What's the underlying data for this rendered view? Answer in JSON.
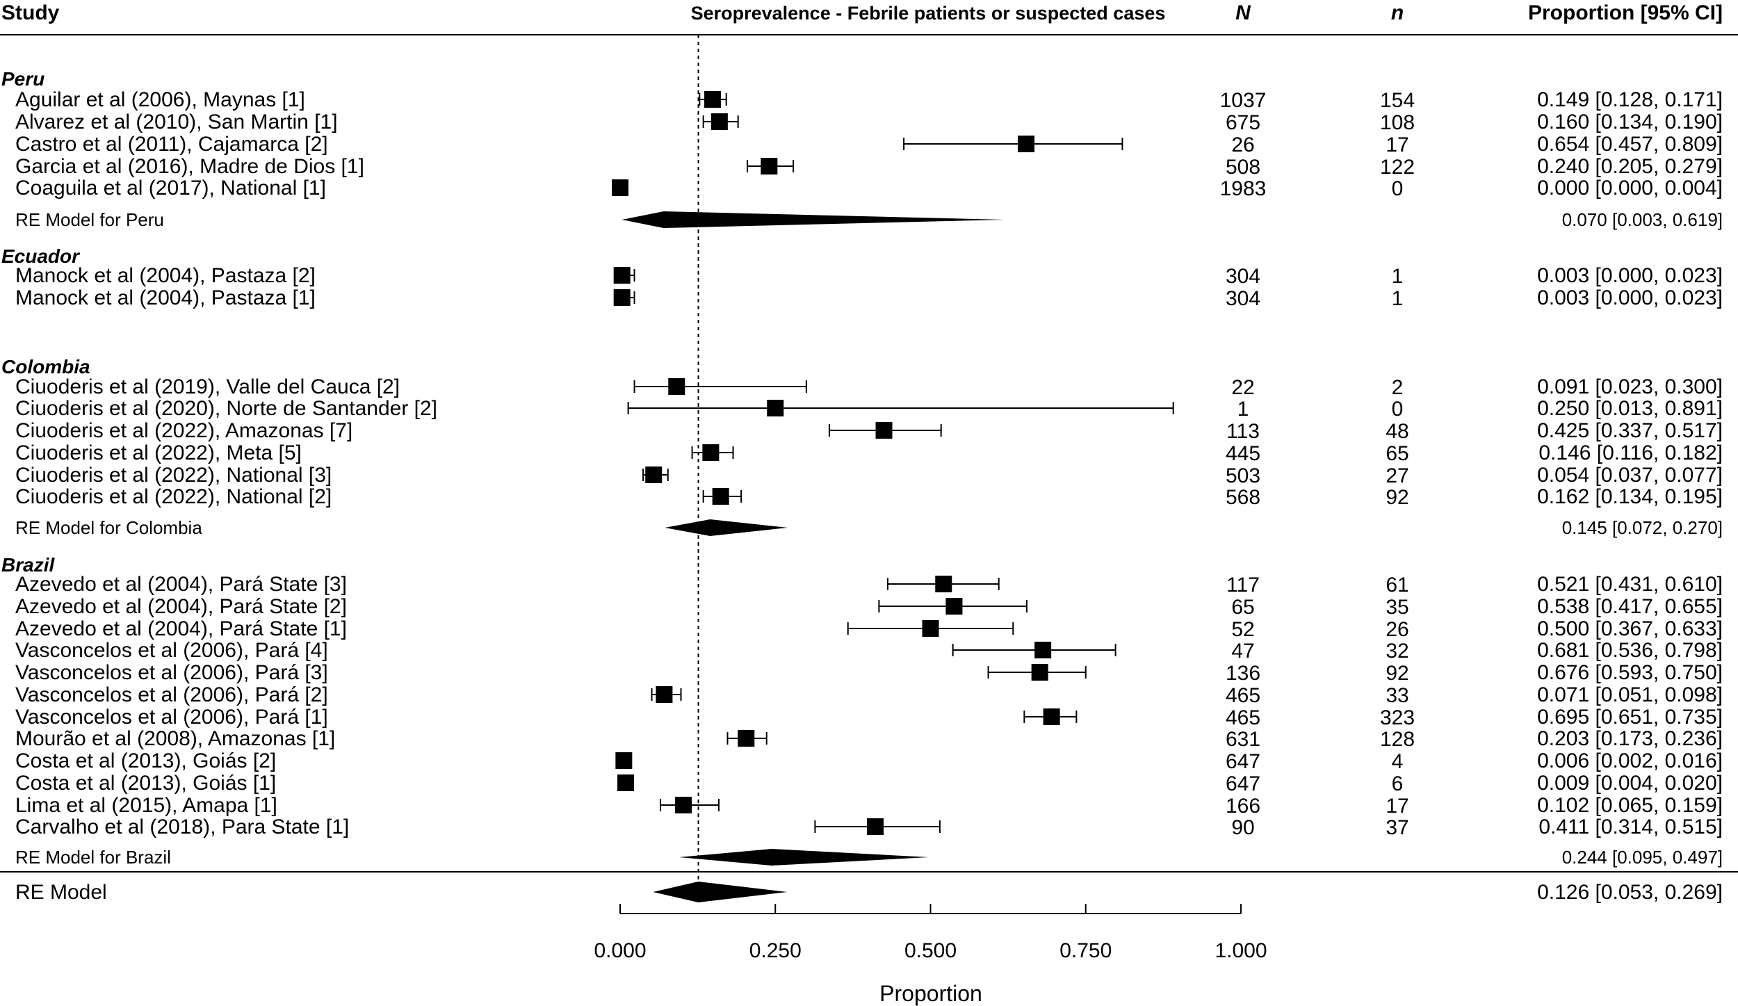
{
  "header": {
    "study": "Study",
    "title": "Seroprevalence - Febrile patients or suspected cases",
    "N": "N",
    "n": "n",
    "proportion": "Proportion [95% CI]"
  },
  "axis": {
    "label": "Proportion",
    "ticks": [
      "0.000",
      "0.250",
      "0.500",
      "0.750",
      "1.000"
    ]
  },
  "chart_data": {
    "type": "forest",
    "xlabel": "Proportion",
    "xlim": [
      0,
      1
    ],
    "x_ticks": [
      0,
      0.25,
      0.5,
      0.75,
      1.0
    ],
    "reference_line": 0.126,
    "groups": [
      {
        "name": "Peru",
        "studies": [
          {
            "label": "Aguilar et al (2006), Maynas [1]",
            "N": "1037",
            "n": "154",
            "est": 0.149,
            "lo": 0.128,
            "hi": 0.171,
            "ci_text": "0.149 [0.128, 0.171]"
          },
          {
            "label": "Alvarez et al (2010), San Martin [1]",
            "N": "675",
            "n": "108",
            "est": 0.16,
            "lo": 0.134,
            "hi": 0.19,
            "ci_text": "0.160 [0.134, 0.190]"
          },
          {
            "label": "Castro et al (2011), Cajamarca [2]",
            "N": "26",
            "n": "17",
            "est": 0.654,
            "lo": 0.457,
            "hi": 0.809,
            "ci_text": "0.654 [0.457, 0.809]"
          },
          {
            "label": "Garcia et al (2016), Madre de Dios [1]",
            "N": "508",
            "n": "122",
            "est": 0.24,
            "lo": 0.205,
            "hi": 0.279,
            "ci_text": "0.240 [0.205, 0.279]"
          },
          {
            "label": "Coaguila et al (2017), National [1]",
            "N": "1983",
            "n": "0",
            "est": 0.0,
            "lo": 0.0,
            "hi": 0.004,
            "ci_text": "0.000 [0.000, 0.004]"
          }
        ],
        "re_model": {
          "label": "RE Model for Peru",
          "est": 0.07,
          "lo": 0.003,
          "hi": 0.619,
          "ci_text": "0.070 [0.003, 0.619]"
        }
      },
      {
        "name": "Ecuador",
        "studies": [
          {
            "label": "Manock et al (2004), Pastaza [2]",
            "N": "304",
            "n": "1",
            "est": 0.003,
            "lo": 0.0,
            "hi": 0.023,
            "ci_text": "0.003 [0.000, 0.023]"
          },
          {
            "label": "Manock et al (2004), Pastaza [1]",
            "N": "304",
            "n": "1",
            "est": 0.003,
            "lo": 0.0,
            "hi": 0.023,
            "ci_text": "0.003 [0.000, 0.023]"
          }
        ]
      },
      {
        "name": "Colombia",
        "studies": [
          {
            "label": "Ciuoderis et al (2019), Valle del Cauca [2]",
            "N": "22",
            "n": "2",
            "est": 0.091,
            "lo": 0.023,
            "hi": 0.3,
            "ci_text": "0.091 [0.023, 0.300]"
          },
          {
            "label": "Ciuoderis et al (2020), Norte de Santander [2]",
            "N": "1",
            "n": "0",
            "est": 0.25,
            "lo": 0.013,
            "hi": 0.891,
            "ci_text": "0.250 [0.013, 0.891]"
          },
          {
            "label": "Ciuoderis et al (2022), Amazonas [7]",
            "N": "113",
            "n": "48",
            "est": 0.425,
            "lo": 0.337,
            "hi": 0.517,
            "ci_text": "0.425 [0.337, 0.517]"
          },
          {
            "label": "Ciuoderis et al (2022), Meta [5]",
            "N": "445",
            "n": "65",
            "est": 0.146,
            "lo": 0.116,
            "hi": 0.182,
            "ci_text": "0.146 [0.116, 0.182]"
          },
          {
            "label": "Ciuoderis et al (2022), National [3]",
            "N": "503",
            "n": "27",
            "est": 0.054,
            "lo": 0.037,
            "hi": 0.077,
            "ci_text": "0.054 [0.037, 0.077]"
          },
          {
            "label": "Ciuoderis et al (2022), National [2]",
            "N": "568",
            "n": "92",
            "est": 0.162,
            "lo": 0.134,
            "hi": 0.195,
            "ci_text": "0.162 [0.134, 0.195]"
          }
        ],
        "re_model": {
          "label": "RE Model for Colombia",
          "est": 0.145,
          "lo": 0.072,
          "hi": 0.27,
          "ci_text": "0.145 [0.072, 0.270]"
        }
      },
      {
        "name": "Brazil",
        "studies": [
          {
            "label": "Azevedo et al (2004), Pará State [3]",
            "N": "117",
            "n": "61",
            "est": 0.521,
            "lo": 0.431,
            "hi": 0.61,
            "ci_text": "0.521 [0.431, 0.610]"
          },
          {
            "label": "Azevedo et al (2004), Pará State [2]",
            "N": "65",
            "n": "35",
            "est": 0.538,
            "lo": 0.417,
            "hi": 0.655,
            "ci_text": "0.538 [0.417, 0.655]"
          },
          {
            "label": "Azevedo et al (2004), Pará State [1]",
            "N": "52",
            "n": "26",
            "est": 0.5,
            "lo": 0.367,
            "hi": 0.633,
            "ci_text": "0.500 [0.367, 0.633]"
          },
          {
            "label": "Vasconcelos et al (2006), Pará [4]",
            "N": "47",
            "n": "32",
            "est": 0.681,
            "lo": 0.536,
            "hi": 0.798,
            "ci_text": "0.681 [0.536, 0.798]"
          },
          {
            "label": "Vasconcelos et al (2006), Pará [3]",
            "N": "136",
            "n": "92",
            "est": 0.676,
            "lo": 0.593,
            "hi": 0.75,
            "ci_text": "0.676 [0.593, 0.750]"
          },
          {
            "label": "Vasconcelos et al (2006), Pará [2]",
            "N": "465",
            "n": "33",
            "est": 0.071,
            "lo": 0.051,
            "hi": 0.098,
            "ci_text": "0.071 [0.051, 0.098]"
          },
          {
            "label": "Vasconcelos et al (2006), Pará [1]",
            "N": "465",
            "n": "323",
            "est": 0.695,
            "lo": 0.651,
            "hi": 0.735,
            "ci_text": "0.695 [0.651, 0.735]"
          },
          {
            "label": "Mourão et al (2008), Amazonas [1]",
            "N": "631",
            "n": "128",
            "est": 0.203,
            "lo": 0.173,
            "hi": 0.236,
            "ci_text": "0.203 [0.173, 0.236]"
          },
          {
            "label": "Costa et al (2013), Goiás [2]",
            "N": "647",
            "n": "4",
            "est": 0.006,
            "lo": 0.002,
            "hi": 0.016,
            "ci_text": "0.006 [0.002, 0.016]"
          },
          {
            "label": "Costa et al (2013), Goiás [1]",
            "N": "647",
            "n": "6",
            "est": 0.009,
            "lo": 0.004,
            "hi": 0.02,
            "ci_text": "0.009 [0.004, 0.020]"
          },
          {
            "label": "Lima et al (2015), Amapa [1]",
            "N": "166",
            "n": "17",
            "est": 0.102,
            "lo": 0.065,
            "hi": 0.159,
            "ci_text": "0.102 [0.065, 0.159]"
          },
          {
            "label": "Carvalho et al (2018), Para State [1]",
            "N": "90",
            "n": "37",
            "est": 0.411,
            "lo": 0.314,
            "hi": 0.515,
            "ci_text": "0.411 [0.314, 0.515]"
          }
        ],
        "re_model": {
          "label": "RE Model for Brazil",
          "est": 0.244,
          "lo": 0.095,
          "hi": 0.497,
          "ci_text": "0.244 [0.095, 0.497]"
        }
      }
    ],
    "overall": {
      "label": "RE Model",
      "est": 0.126,
      "lo": 0.053,
      "hi": 0.269,
      "ci_text": "0.126 [0.053, 0.269]"
    }
  }
}
